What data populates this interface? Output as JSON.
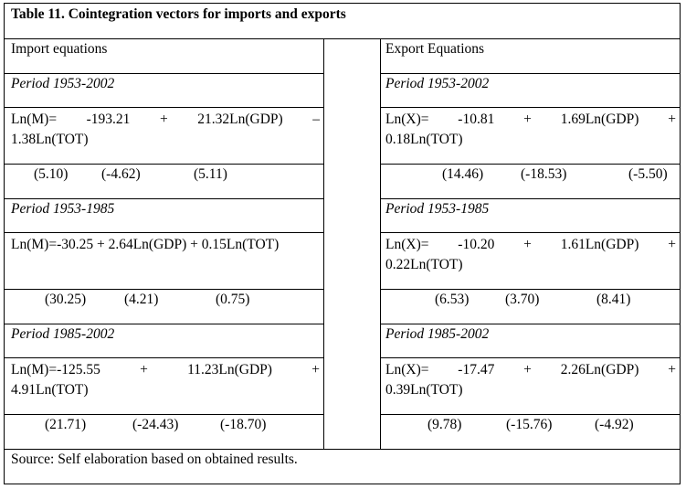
{
  "title": "Table 11. Cointegration vectors for imports and exports",
  "import_header": "Import equations",
  "export_header": "Export Equations",
  "import": [
    {
      "period": "Period 1953-2002",
      "eq_line1": [
        "Ln(M)=",
        "-193.21",
        "+",
        "21.32Ln(GDP)",
        "–"
      ],
      "eq_line2": "1.38Ln(TOT)",
      "tstats": [
        "(5.10)",
        "(-4.62)",
        "(5.11)"
      ]
    },
    {
      "period": "Period 1953-1985",
      "eq_single": "Ln(M)=-30.25 + 2.64Ln(GDP) + 0.15Ln(TOT)",
      "tstats": [
        "(30.25)",
        "(4.21)",
        "(0.75)"
      ]
    },
    {
      "period": "Period 1985-2002",
      "eq_line1": [
        "Ln(M)=-125.55",
        "+",
        "11.23Ln(GDP)",
        "+"
      ],
      "eq_line2": "4.91Ln(TOT)",
      "tstats": [
        "(21.71)",
        "(-24.43)",
        "(-18.70)"
      ]
    }
  ],
  "export": [
    {
      "period": "Period 1953-2002",
      "eq_line1": [
        "Ln(X)=",
        "-10.81",
        "+",
        "1.69Ln(GDP)",
        "+"
      ],
      "eq_line2": "0.18Ln(TOT)",
      "tstats": [
        "(14.46)",
        "(-18.53)",
        "(-5.50)"
      ]
    },
    {
      "period": "Period 1953-1985",
      "eq_line1": [
        "Ln(X)=",
        "-10.20",
        "+",
        "1.61Ln(GDP)",
        "+"
      ],
      "eq_line2": "0.22Ln(TOT)",
      "tstats": [
        "(6.53)",
        "(3.70)",
        "(8.41)"
      ]
    },
    {
      "period": "Period 1985-2002",
      "eq_line1": [
        "Ln(X)=",
        "-17.47",
        "+",
        "2.26Ln(GDP)",
        "+"
      ],
      "eq_line2": "0.39Ln(TOT)",
      "tstats": [
        "(9.78)",
        "(-15.76)",
        "(-4.92)"
      ]
    }
  ],
  "source": "Source: Self elaboration based on obtained results."
}
